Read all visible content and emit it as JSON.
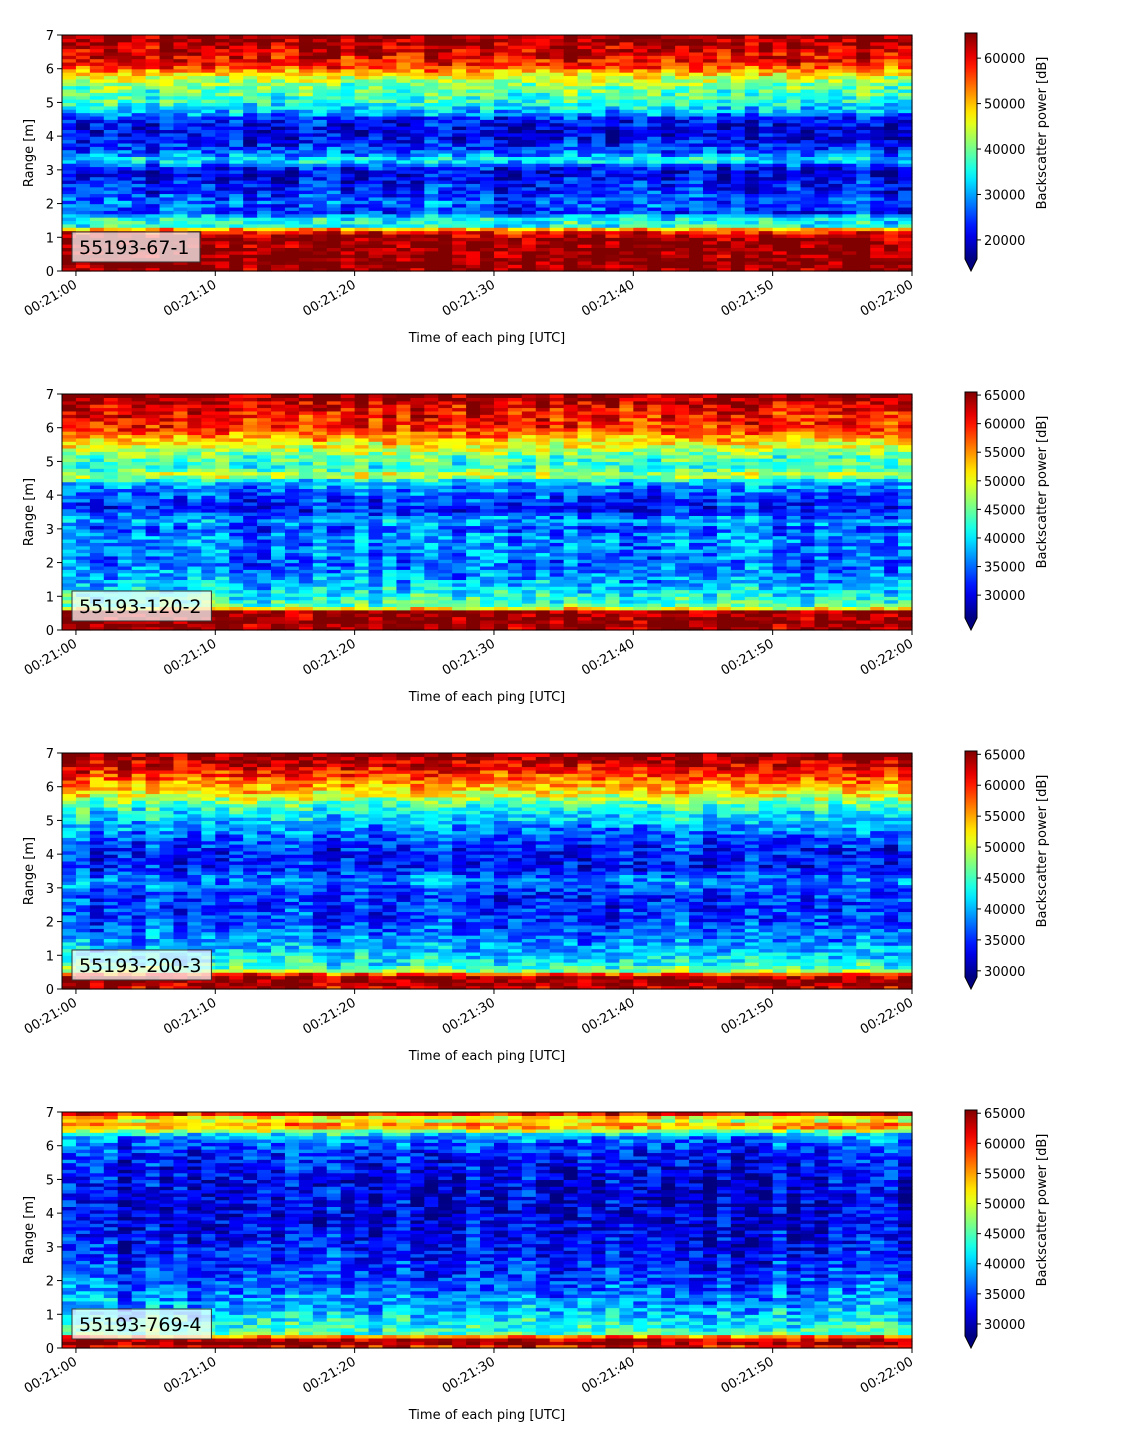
{
  "chart_data": [
    {
      "type": "heatmap",
      "panel_label": "55193-67-1",
      "xlabel": "Time of each ping [UTC]",
      "ylabel": "Range [m]",
      "colorbar_label": "Backscatter power [dB]",
      "colormap": "jet",
      "x_range": [
        "00:20:59",
        "00:22:00"
      ],
      "x_ticks": [
        "00:21:00",
        "00:21:10",
        "00:21:20",
        "00:21:30",
        "00:21:40",
        "00:21:50",
        "00:22:00"
      ],
      "ylim": [
        0,
        7
      ],
      "y_ticks": [
        0,
        1,
        2,
        3,
        4,
        5,
        6,
        7
      ],
      "clim": [
        15800,
        65535
      ],
      "colorbar_ticks": [
        20000,
        30000,
        40000,
        50000,
        60000
      ],
      "colorbar_extend": "min",
      "range_profile": [
        {
          "range": 0.0,
          "value": 64000
        },
        {
          "range": 0.2,
          "value": 65500
        },
        {
          "range": 1.0,
          "value": 64500
        },
        {
          "range": 1.2,
          "value": 58000
        },
        {
          "range": 1.35,
          "value": 36000
        },
        {
          "range": 1.6,
          "value": 34000
        },
        {
          "range": 1.75,
          "value": 24000
        },
        {
          "range": 2.0,
          "value": 27000
        },
        {
          "range": 2.3,
          "value": 24000
        },
        {
          "range": 2.6,
          "value": 23000
        },
        {
          "range": 2.9,
          "value": 20000
        },
        {
          "range": 3.1,
          "value": 23500
        },
        {
          "range": 3.3,
          "value": 35000
        },
        {
          "range": 3.5,
          "value": 27000
        },
        {
          "range": 3.9,
          "value": 21000
        },
        {
          "range": 4.2,
          "value": 20000
        },
        {
          "range": 4.5,
          "value": 22500
        },
        {
          "range": 4.7,
          "value": 30000
        },
        {
          "range": 5.0,
          "value": 36000
        },
        {
          "range": 5.5,
          "value": 40000
        },
        {
          "range": 5.8,
          "value": 46000
        },
        {
          "range": 6.1,
          "value": 58000
        },
        {
          "range": 6.5,
          "value": 61000
        },
        {
          "range": 7.0,
          "value": 65535
        }
      ]
    },
    {
      "type": "heatmap",
      "panel_label": "55193-120-2",
      "xlabel": "Time of each ping [UTC]",
      "ylabel": "Range [m]",
      "colorbar_label": "Backscatter power [dB]",
      "colormap": "jet",
      "x_range": [
        "00:20:59",
        "00:22:00"
      ],
      "x_ticks": [
        "00:21:00",
        "00:21:10",
        "00:21:20",
        "00:21:30",
        "00:21:40",
        "00:21:50",
        "00:22:00"
      ],
      "ylim": [
        0,
        7
      ],
      "y_ticks": [
        0,
        1,
        2,
        3,
        4,
        5,
        6,
        7
      ],
      "clim": [
        26000,
        65535
      ],
      "colorbar_ticks": [
        30000,
        35000,
        40000,
        45000,
        50000,
        55000,
        60000,
        65000
      ],
      "colorbar_extend": "min",
      "range_profile": [
        {
          "range": 0.0,
          "value": 64000
        },
        {
          "range": 0.2,
          "value": 65535
        },
        {
          "range": 0.55,
          "value": 65000
        },
        {
          "range": 0.7,
          "value": 44000
        },
        {
          "range": 1.0,
          "value": 42000
        },
        {
          "range": 1.4,
          "value": 38000
        },
        {
          "range": 2.0,
          "value": 35000
        },
        {
          "range": 2.8,
          "value": 37000
        },
        {
          "range": 3.0,
          "value": 33000
        },
        {
          "range": 3.2,
          "value": 38000
        },
        {
          "range": 3.6,
          "value": 32000
        },
        {
          "range": 4.0,
          "value": 34000
        },
        {
          "range": 4.4,
          "value": 38000
        },
        {
          "range": 4.6,
          "value": 50000
        },
        {
          "range": 4.8,
          "value": 42000
        },
        {
          "range": 5.2,
          "value": 45000
        },
        {
          "range": 5.6,
          "value": 52000
        },
        {
          "range": 6.0,
          "value": 59000
        },
        {
          "range": 6.5,
          "value": 61000
        },
        {
          "range": 7.0,
          "value": 65535
        }
      ]
    },
    {
      "type": "heatmap",
      "panel_label": "55193-200-3",
      "xlabel": "Time of each ping [UTC]",
      "ylabel": "Range [m]",
      "colorbar_label": "Backscatter power [dB]",
      "colormap": "jet",
      "x_range": [
        "00:20:59",
        "00:22:00"
      ],
      "x_ticks": [
        "00:21:00",
        "00:21:10",
        "00:21:20",
        "00:21:30",
        "00:21:40",
        "00:21:50",
        "00:22:00"
      ],
      "ylim": [
        0,
        7
      ],
      "y_ticks": [
        0,
        1,
        2,
        3,
        4,
        5,
        6,
        7
      ],
      "clim": [
        29000,
        65535
      ],
      "colorbar_ticks": [
        30000,
        35000,
        40000,
        45000,
        50000,
        55000,
        60000,
        65000
      ],
      "colorbar_extend": "min",
      "range_profile": [
        {
          "range": 0.0,
          "value": 62000
        },
        {
          "range": 0.2,
          "value": 65535
        },
        {
          "range": 0.4,
          "value": 64000
        },
        {
          "range": 0.55,
          "value": 48000
        },
        {
          "range": 0.8,
          "value": 43000
        },
        {
          "range": 1.2,
          "value": 40000
        },
        {
          "range": 2.0,
          "value": 36000
        },
        {
          "range": 2.8,
          "value": 35000
        },
        {
          "range": 3.2,
          "value": 39000
        },
        {
          "range": 3.6,
          "value": 34000
        },
        {
          "range": 4.2,
          "value": 35000
        },
        {
          "range": 4.8,
          "value": 39000
        },
        {
          "range": 5.4,
          "value": 44000
        },
        {
          "range": 5.8,
          "value": 52000
        },
        {
          "range": 6.2,
          "value": 57000
        },
        {
          "range": 6.6,
          "value": 62000
        },
        {
          "range": 7.0,
          "value": 65535
        }
      ]
    },
    {
      "type": "heatmap",
      "panel_label": "55193-769-4",
      "xlabel": "Time of each ping [UTC]",
      "ylabel": "Range [m]",
      "colorbar_label": "Backscatter power [dB]",
      "colormap": "jet",
      "x_range": [
        "00:20:59",
        "00:22:00"
      ],
      "x_ticks": [
        "00:21:00",
        "00:21:10",
        "00:21:20",
        "00:21:30",
        "00:21:40",
        "00:21:50",
        "00:22:00"
      ],
      "ylim": [
        0,
        7
      ],
      "y_ticks": [
        0,
        1,
        2,
        3,
        4,
        5,
        6,
        7
      ],
      "clim": [
        28000,
        65535
      ],
      "colorbar_ticks": [
        30000,
        35000,
        40000,
        45000,
        50000,
        55000,
        60000,
        65000
      ],
      "colorbar_extend": "min",
      "range_profile": [
        {
          "range": 0.0,
          "value": 58000
        },
        {
          "range": 0.15,
          "value": 65535
        },
        {
          "range": 0.3,
          "value": 62000
        },
        {
          "range": 0.45,
          "value": 45000
        },
        {
          "range": 0.8,
          "value": 42000
        },
        {
          "range": 1.4,
          "value": 38000
        },
        {
          "range": 2.2,
          "value": 35000
        },
        {
          "range": 3.0,
          "value": 33000
        },
        {
          "range": 4.0,
          "value": 31500
        },
        {
          "range": 5.0,
          "value": 32000
        },
        {
          "range": 5.8,
          "value": 34000
        },
        {
          "range": 6.3,
          "value": 38000
        },
        {
          "range": 6.6,
          "value": 58000
        },
        {
          "range": 6.8,
          "value": 48000
        },
        {
          "range": 7.0,
          "value": 65535
        }
      ]
    }
  ]
}
